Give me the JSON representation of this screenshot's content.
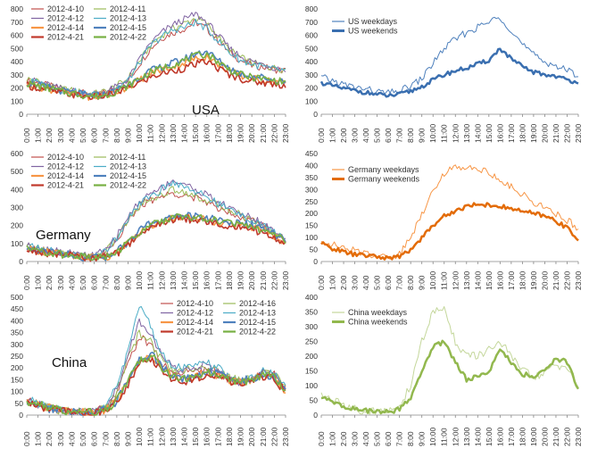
{
  "hour_labels": [
    "0:00",
    "1:00",
    "2:00",
    "3:00",
    "4:00",
    "5:00",
    "6:00",
    "7:00",
    "8:00",
    "9:00",
    "10:00",
    "11:00",
    "12:00",
    "13:00",
    "14:00",
    "15:00",
    "16:00",
    "17:00",
    "18:00",
    "19:00",
    "20:00",
    "21:00",
    "22:00",
    "23:00"
  ],
  "chart_data": [
    {
      "id": "usa_daily",
      "type": "line",
      "panel_label": "USA",
      "ylim": [
        0,
        800
      ],
      "yticks": [
        0,
        100,
        200,
        300,
        400,
        500,
        600,
        700,
        800
      ],
      "series": [
        {
          "name": "2012-4-10",
          "color": "#c0504d",
          "width": 1,
          "values": [
            260,
            240,
            215,
            190,
            180,
            160,
            150,
            165,
            200,
            250,
            380,
            500,
            580,
            620,
            650,
            700,
            650,
            560,
            470,
            410,
            370,
            360,
            340,
            330
          ]
        },
        {
          "name": "2012-4-11",
          "color": "#9bbb59",
          "width": 1,
          "values": [
            270,
            250,
            220,
            195,
            180,
            165,
            155,
            175,
            215,
            270,
            400,
            520,
            600,
            650,
            690,
            730,
            690,
            590,
            490,
            430,
            390,
            370,
            350,
            340
          ]
        },
        {
          "name": "2012-4-12",
          "color": "#8064a2",
          "width": 1,
          "values": [
            265,
            245,
            220,
            195,
            180,
            165,
            150,
            170,
            210,
            265,
            410,
            540,
            620,
            680,
            720,
            760,
            700,
            600,
            500,
            440,
            400,
            380,
            355,
            340
          ]
        },
        {
          "name": "2012-4-13",
          "color": "#4bacc6",
          "width": 1,
          "values": [
            255,
            240,
            210,
            190,
            175,
            160,
            150,
            165,
            205,
            255,
            390,
            520,
            590,
            640,
            660,
            700,
            650,
            560,
            470,
            410,
            380,
            360,
            340,
            330
          ]
        },
        {
          "name": "2012-4-14",
          "color": "#f79646",
          "width": 1.6,
          "values": [
            230,
            210,
            190,
            170,
            155,
            140,
            130,
            140,
            170,
            210,
            260,
            310,
            340,
            360,
            390,
            420,
            440,
            380,
            330,
            290,
            270,
            260,
            250,
            240
          ]
        },
        {
          "name": "2012-4-15",
          "color": "#4f81bd",
          "width": 1.6,
          "values": [
            240,
            220,
            200,
            180,
            165,
            150,
            140,
            150,
            180,
            220,
            280,
            330,
            360,
            390,
            420,
            460,
            480,
            410,
            350,
            310,
            290,
            280,
            260,
            250
          ]
        },
        {
          "name": "2012-4-21",
          "color": "#c0392b",
          "width": 1.6,
          "values": [
            220,
            200,
            180,
            165,
            150,
            140,
            130,
            140,
            165,
            200,
            240,
            280,
            310,
            330,
            350,
            380,
            400,
            350,
            300,
            270,
            250,
            240,
            230,
            220
          ]
        },
        {
          "name": "2012-4-22",
          "color": "#77b043",
          "width": 1.6,
          "values": [
            235,
            215,
            195,
            175,
            160,
            145,
            135,
            145,
            175,
            215,
            270,
            320,
            350,
            380,
            410,
            440,
            460,
            400,
            340,
            300,
            280,
            270,
            255,
            245
          ]
        }
      ]
    },
    {
      "id": "usa_avg",
      "type": "line",
      "ylim": [
        0,
        800
      ],
      "yticks": [
        0,
        100,
        200,
        300,
        400,
        500,
        600,
        700,
        800
      ],
      "series": [
        {
          "name": "US weekdays",
          "color": "#4f81bd",
          "width": 1,
          "values": [
            280,
            255,
            225,
            205,
            190,
            170,
            160,
            175,
            215,
            270,
            390,
            500,
            570,
            620,
            660,
            700,
            740,
            640,
            530,
            450,
            400,
            370,
            330,
            300
          ]
        },
        {
          "name": "US weekends",
          "color": "#3a6fb0",
          "width": 2.5,
          "values": [
            240,
            215,
            195,
            180,
            165,
            150,
            140,
            150,
            175,
            210,
            260,
            300,
            330,
            350,
            380,
            410,
            500,
            420,
            360,
            320,
            300,
            290,
            260,
            245
          ]
        }
      ]
    },
    {
      "id": "germany_daily",
      "type": "line",
      "panel_label": "Germany",
      "ylim": [
        0,
        600
      ],
      "yticks": [
        0,
        100,
        200,
        300,
        400,
        500,
        600
      ],
      "series": [
        {
          "name": "2012-4-10",
          "color": "#c0504d",
          "width": 1,
          "values": [
            80,
            70,
            60,
            50,
            40,
            30,
            30,
            50,
            120,
            220,
            300,
            340,
            360,
            380,
            370,
            350,
            330,
            300,
            280,
            250,
            230,
            200,
            160,
            120
          ]
        },
        {
          "name": "2012-4-11",
          "color": "#9bbb59",
          "width": 1,
          "values": [
            85,
            75,
            60,
            50,
            40,
            30,
            30,
            55,
            130,
            230,
            310,
            350,
            370,
            400,
            390,
            360,
            340,
            310,
            290,
            260,
            230,
            200,
            165,
            125
          ]
        },
        {
          "name": "2012-4-12",
          "color": "#8064a2",
          "width": 1,
          "values": [
            90,
            80,
            65,
            55,
            45,
            35,
            35,
            60,
            140,
            250,
            330,
            380,
            410,
            450,
            430,
            400,
            370,
            330,
            300,
            270,
            240,
            210,
            170,
            130
          ]
        },
        {
          "name": "2012-4-13",
          "color": "#4bacc6",
          "width": 1,
          "values": [
            85,
            75,
            60,
            50,
            40,
            30,
            30,
            55,
            135,
            240,
            320,
            360,
            400,
            440,
            420,
            390,
            360,
            320,
            290,
            260,
            230,
            200,
            160,
            120
          ]
        },
        {
          "name": "2012-4-14",
          "color": "#f79646",
          "width": 1.6,
          "values": [
            70,
            60,
            50,
            40,
            35,
            25,
            20,
            25,
            50,
            100,
            160,
            200,
            220,
            240,
            250,
            240,
            230,
            220,
            210,
            200,
            190,
            170,
            140,
            110
          ]
        },
        {
          "name": "2012-4-15",
          "color": "#4f81bd",
          "width": 1.6,
          "values": [
            75,
            65,
            55,
            45,
            35,
            25,
            20,
            25,
            55,
            110,
            170,
            210,
            230,
            250,
            260,
            250,
            240,
            230,
            220,
            210,
            200,
            180,
            150,
            115
          ]
        },
        {
          "name": "2012-4-21",
          "color": "#c0392b",
          "width": 1.6,
          "values": [
            65,
            55,
            45,
            40,
            30,
            25,
            20,
            25,
            45,
            90,
            150,
            190,
            210,
            230,
            240,
            230,
            220,
            210,
            200,
            190,
            180,
            160,
            130,
            100
          ]
        },
        {
          "name": "2012-4-22",
          "color": "#77b043",
          "width": 1.6,
          "values": [
            70,
            60,
            50,
            40,
            35,
            25,
            20,
            25,
            50,
            105,
            165,
            205,
            225,
            245,
            255,
            245,
            235,
            225,
            215,
            205,
            195,
            175,
            145,
            110
          ]
        }
      ]
    },
    {
      "id": "germany_avg",
      "type": "line",
      "ylim": [
        0,
        450
      ],
      "yticks": [
        0,
        50,
        100,
        150,
        200,
        250,
        300,
        350,
        400,
        450
      ],
      "series": [
        {
          "name": "Germany weekdays",
          "color": "#f79646",
          "width": 1,
          "values": [
            90,
            70,
            55,
            45,
            35,
            25,
            20,
            30,
            100,
            200,
            300,
            370,
            390,
            400,
            390,
            370,
            340,
            310,
            280,
            250,
            220,
            200,
            170,
            140
          ]
        },
        {
          "name": "Germany weekends",
          "color": "#e36c09",
          "width": 2.5,
          "values": [
            75,
            55,
            40,
            30,
            25,
            20,
            15,
            20,
            50,
            100,
            150,
            190,
            210,
            230,
            240,
            235,
            230,
            220,
            210,
            200,
            190,
            170,
            140,
            90
          ]
        }
      ]
    },
    {
      "id": "china_daily",
      "type": "line",
      "panel_label": "China",
      "ylim": [
        0,
        500
      ],
      "yticks": [
        0,
        50,
        100,
        150,
        200,
        250,
        300,
        350,
        400,
        450,
        500
      ],
      "series": [
        {
          "name": "2012-4-10",
          "color": "#c0504d",
          "width": 1,
          "values": [
            60,
            45,
            30,
            20,
            15,
            15,
            15,
            30,
            90,
            220,
            330,
            300,
            220,
            180,
            180,
            190,
            200,
            180,
            150,
            140,
            150,
            180,
            170,
            110
          ]
        },
        {
          "name": "2012-4-16",
          "color": "#9bbb59",
          "width": 1,
          "values": [
            65,
            45,
            30,
            20,
            15,
            15,
            15,
            35,
            100,
            240,
            350,
            310,
            230,
            190,
            190,
            200,
            210,
            190,
            160,
            145,
            155,
            185,
            175,
            115
          ]
        },
        {
          "name": "2012-4-12",
          "color": "#8064a2",
          "width": 1,
          "values": [
            60,
            45,
            30,
            20,
            15,
            15,
            15,
            35,
            110,
            260,
            400,
            350,
            250,
            200,
            190,
            200,
            220,
            190,
            155,
            140,
            150,
            180,
            170,
            110
          ]
        },
        {
          "name": "2012-4-13",
          "color": "#4bacc6",
          "width": 1,
          "values": [
            70,
            50,
            30,
            20,
            15,
            15,
            15,
            40,
            120,
            270,
            470,
            380,
            260,
            210,
            200,
            210,
            220,
            200,
            160,
            145,
            155,
            185,
            175,
            120
          ]
        },
        {
          "name": "2012-4-14",
          "color": "#f79646",
          "width": 1.6,
          "values": [
            60,
            45,
            30,
            20,
            15,
            10,
            10,
            20,
            60,
            140,
            220,
            250,
            200,
            160,
            150,
            160,
            180,
            170,
            150,
            140,
            150,
            170,
            160,
            100
          ]
        },
        {
          "name": "2012-4-15",
          "color": "#4f81bd",
          "width": 1.6,
          "values": [
            55,
            40,
            25,
            20,
            15,
            10,
            10,
            20,
            60,
            150,
            230,
            260,
            210,
            165,
            155,
            165,
            185,
            175,
            155,
            145,
            155,
            175,
            165,
            105
          ]
        },
        {
          "name": "2012-4-21",
          "color": "#c0392b",
          "width": 1.6,
          "values": [
            55,
            40,
            25,
            18,
            12,
            10,
            10,
            20,
            55,
            130,
            210,
            240,
            190,
            150,
            145,
            155,
            175,
            165,
            145,
            135,
            145,
            165,
            155,
            95
          ]
        },
        {
          "name": "2012-4-22",
          "color": "#77b043",
          "width": 1.6,
          "values": [
            60,
            45,
            30,
            20,
            15,
            10,
            10,
            22,
            60,
            145,
            225,
            255,
            205,
            160,
            150,
            160,
            180,
            170,
            150,
            140,
            150,
            170,
            160,
            100
          ]
        }
      ]
    },
    {
      "id": "china_avg",
      "type": "line",
      "ylim": [
        0,
        400
      ],
      "yticks": [
        0,
        50,
        100,
        150,
        200,
        250,
        300,
        350,
        400
      ],
      "series": [
        {
          "name": "China weekdays",
          "color": "#c4d79b",
          "width": 1,
          "values": [
            70,
            50,
            35,
            20,
            15,
            12,
            12,
            30,
            100,
            250,
            350,
            360,
            250,
            200,
            200,
            220,
            250,
            200,
            150,
            130,
            140,
            170,
            160,
            100
          ]
        },
        {
          "name": "China weekends",
          "color": "#92b84e",
          "width": 2.5,
          "values": [
            60,
            45,
            30,
            20,
            15,
            10,
            10,
            20,
            60,
            150,
            230,
            250,
            180,
            120,
            130,
            150,
            220,
            180,
            140,
            130,
            150,
            190,
            180,
            85
          ]
        }
      ]
    }
  ]
}
